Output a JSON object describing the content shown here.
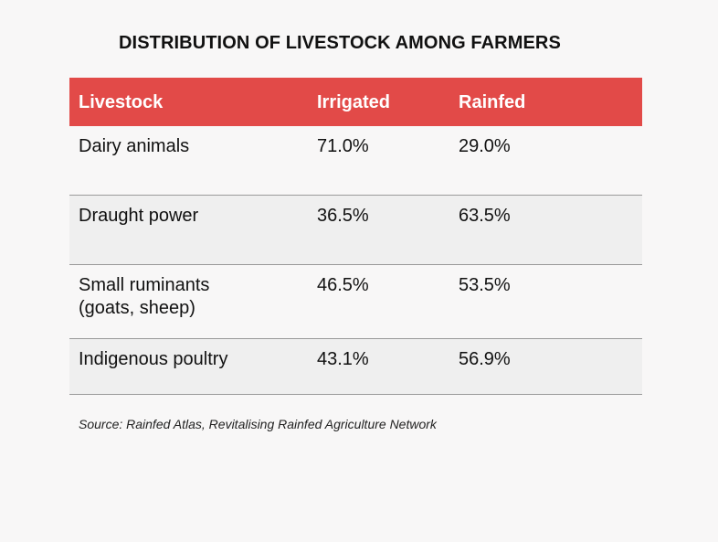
{
  "chart_data": {
    "type": "table",
    "title": "DISTRIBUTION OF LIVESTOCK AMONG FARMERS",
    "columns": [
      "Livestock",
      "Irrigated",
      "Rainfed"
    ],
    "rows": [
      {
        "livestock": "Dairy animals",
        "irrigated": "71.0%",
        "rainfed": "29.0%"
      },
      {
        "livestock": "Draught power",
        "irrigated": "36.5%",
        "rainfed": "63.5%"
      },
      {
        "livestock": "Small ruminants\n(goats, sheep)",
        "irrigated": "46.5%",
        "rainfed": "53.5%"
      },
      {
        "livestock": "Indigenous poultry",
        "irrigated": "43.1%",
        "rainfed": "56.9%"
      }
    ],
    "source": "Source: Rainfed Atlas, Revitalising Rainfed Agriculture Network"
  },
  "colors": {
    "header_background": "#e24a48",
    "header_text": "#ffffff",
    "row_alt_background": "#efefef",
    "page_background": "#f8f7f7"
  }
}
